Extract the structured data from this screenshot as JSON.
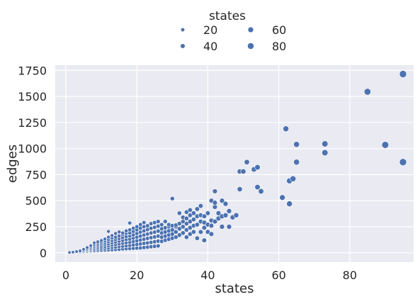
{
  "chart_data": {
    "type": "scatter",
    "title": "",
    "xlabel": "states",
    "ylabel": "edges",
    "xlim": [
      -3,
      98
    ],
    "ylim": [
      -90,
      1800
    ],
    "xticks": [
      0,
      20,
      40,
      60,
      80
    ],
    "yticks": [
      0,
      250,
      500,
      750,
      1000,
      1250,
      1500,
      1750
    ],
    "grid": true,
    "legend": {
      "title": "states",
      "placement": "top-center",
      "size_encoding": "states",
      "entries": [
        {
          "label": "20",
          "value": 20
        },
        {
          "label": "40",
          "value": 40
        },
        {
          "label": "60",
          "value": 60
        },
        {
          "label": "80",
          "value": 80
        }
      ]
    },
    "colors": {
      "background": "#eaeaf2",
      "grid": "#ffffff",
      "marker": "#4c72b0",
      "marker_edge": "#ffffff"
    },
    "size_range": [
      2.2,
      5.0
    ],
    "points": [
      [
        1,
        2
      ],
      [
        1,
        3
      ],
      [
        2,
        4
      ],
      [
        2,
        6
      ],
      [
        3,
        5
      ],
      [
        3,
        9
      ],
      [
        3,
        12
      ],
      [
        4,
        8
      ],
      [
        4,
        14
      ],
      [
        4,
        19
      ],
      [
        5,
        10
      ],
      [
        5,
        18
      ],
      [
        5,
        26
      ],
      [
        5,
        33
      ],
      [
        6,
        14
      ],
      [
        6,
        22
      ],
      [
        6,
        30
      ],
      [
        6,
        40
      ],
      [
        6,
        50
      ],
      [
        7,
        16
      ],
      [
        7,
        26
      ],
      [
        7,
        36
      ],
      [
        7,
        46
      ],
      [
        7,
        58
      ],
      [
        7,
        68
      ],
      [
        8,
        18
      ],
      [
        8,
        30
      ],
      [
        8,
        42
      ],
      [
        8,
        55
      ],
      [
        8,
        68
      ],
      [
        8,
        80
      ],
      [
        8,
        95
      ],
      [
        9,
        20
      ],
      [
        9,
        34
      ],
      [
        9,
        48
      ],
      [
        9,
        62
      ],
      [
        9,
        76
      ],
      [
        9,
        90
      ],
      [
        9,
        105
      ],
      [
        10,
        22
      ],
      [
        10,
        38
      ],
      [
        10,
        54
      ],
      [
        10,
        70
      ],
      [
        10,
        86
      ],
      [
        10,
        102
      ],
      [
        10,
        118
      ],
      [
        11,
        24
      ],
      [
        11,
        42
      ],
      [
        11,
        60
      ],
      [
        11,
        78
      ],
      [
        11,
        96
      ],
      [
        11,
        114
      ],
      [
        11,
        132
      ],
      [
        12,
        26
      ],
      [
        12,
        46
      ],
      [
        12,
        66
      ],
      [
        12,
        86
      ],
      [
        12,
        106
      ],
      [
        12,
        126
      ],
      [
        12,
        150
      ],
      [
        12,
        205
      ],
      [
        13,
        28
      ],
      [
        13,
        50
      ],
      [
        13,
        72
      ],
      [
        13,
        94
      ],
      [
        13,
        116
      ],
      [
        13,
        140
      ],
      [
        13,
        165
      ],
      [
        14,
        30
      ],
      [
        14,
        54
      ],
      [
        14,
        78
      ],
      [
        14,
        102
      ],
      [
        14,
        126
      ],
      [
        14,
        150
      ],
      [
        14,
        185
      ],
      [
        15,
        32
      ],
      [
        15,
        58
      ],
      [
        15,
        84
      ],
      [
        15,
        110
      ],
      [
        15,
        136
      ],
      [
        15,
        162
      ],
      [
        15,
        200
      ],
      [
        16,
        36
      ],
      [
        16,
        62
      ],
      [
        16,
        90
      ],
      [
        16,
        118
      ],
      [
        16,
        146
      ],
      [
        16,
        174
      ],
      [
        16,
        190
      ],
      [
        17,
        38
      ],
      [
        17,
        66
      ],
      [
        17,
        96
      ],
      [
        17,
        126
      ],
      [
        17,
        156
      ],
      [
        17,
        186
      ],
      [
        17,
        210
      ],
      [
        18,
        40
      ],
      [
        18,
        70
      ],
      [
        18,
        100
      ],
      [
        18,
        130
      ],
      [
        18,
        160
      ],
      [
        18,
        190
      ],
      [
        18,
        220
      ],
      [
        18,
        285
      ],
      [
        19,
        42
      ],
      [
        19,
        75
      ],
      [
        19,
        108
      ],
      [
        19,
        140
      ],
      [
        19,
        172
      ],
      [
        19,
        205
      ],
      [
        19,
        235
      ],
      [
        20,
        44
      ],
      [
        20,
        80
      ],
      [
        20,
        115
      ],
      [
        20,
        150
      ],
      [
        20,
        185
      ],
      [
        20,
        220
      ],
      [
        20,
        250
      ],
      [
        21,
        46
      ],
      [
        21,
        84
      ],
      [
        21,
        122
      ],
      [
        21,
        160
      ],
      [
        21,
        198
      ],
      [
        21,
        236
      ],
      [
        21,
        270
      ],
      [
        22,
        50
      ],
      [
        22,
        90
      ],
      [
        22,
        130
      ],
      [
        22,
        170
      ],
      [
        22,
        210
      ],
      [
        22,
        250
      ],
      [
        22,
        290
      ],
      [
        23,
        54
      ],
      [
        23,
        95
      ],
      [
        23,
        138
      ],
      [
        23,
        180
      ],
      [
        23,
        222
      ],
      [
        23,
        260
      ],
      [
        24,
        58
      ],
      [
        24,
        100
      ],
      [
        24,
        145
      ],
      [
        24,
        190
      ],
      [
        24,
        235
      ],
      [
        24,
        280
      ],
      [
        25,
        62
      ],
      [
        25,
        106
      ],
      [
        25,
        152
      ],
      [
        25,
        198
      ],
      [
        25,
        244
      ],
      [
        25,
        290
      ],
      [
        26,
        66
      ],
      [
        26,
        112
      ],
      [
        26,
        160
      ],
      [
        26,
        208
      ],
      [
        26,
        256
      ],
      [
        26,
        300
      ],
      [
        27,
        110
      ],
      [
        27,
        150
      ],
      [
        27,
        190
      ],
      [
        27,
        230
      ],
      [
        27,
        270
      ],
      [
        28,
        120
      ],
      [
        28,
        160
      ],
      [
        28,
        200
      ],
      [
        28,
        240
      ],
      [
        28,
        300
      ],
      [
        29,
        130
      ],
      [
        29,
        170
      ],
      [
        29,
        210
      ],
      [
        29,
        250
      ],
      [
        29,
        270
      ],
      [
        30,
        140
      ],
      [
        30,
        180
      ],
      [
        30,
        220
      ],
      [
        30,
        260
      ],
      [
        30,
        520
      ],
      [
        31,
        150
      ],
      [
        31,
        200
      ],
      [
        31,
        250
      ],
      [
        31,
        265
      ],
      [
        32,
        170
      ],
      [
        32,
        230
      ],
      [
        32,
        280
      ],
      [
        32,
        380
      ],
      [
        33,
        190
      ],
      [
        33,
        250
      ],
      [
        33,
        300
      ],
      [
        33,
        340
      ],
      [
        34,
        150
      ],
      [
        34,
        220
      ],
      [
        34,
        280
      ],
      [
        34,
        330
      ],
      [
        34,
        390
      ],
      [
        35,
        180
      ],
      [
        35,
        240
      ],
      [
        35,
        300
      ],
      [
        35,
        360
      ],
      [
        35,
        410
      ],
      [
        36,
        200
      ],
      [
        36,
        260
      ],
      [
        36,
        320
      ],
      [
        36,
        380
      ],
      [
        37,
        140
      ],
      [
        37,
        270
      ],
      [
        37,
        350
      ],
      [
        37,
        420
      ],
      [
        38,
        200
      ],
      [
        38,
        300
      ],
      [
        38,
        360
      ],
      [
        38,
        450
      ],
      [
        39,
        120
      ],
      [
        39,
        240
      ],
      [
        39,
        350
      ],
      [
        39,
        290
      ],
      [
        40,
        200
      ],
      [
        40,
        270
      ],
      [
        40,
        380
      ],
      [
        41,
        180
      ],
      [
        41,
        260
      ],
      [
        41,
        310
      ],
      [
        41,
        500
      ],
      [
        42,
        300
      ],
      [
        42,
        440
      ],
      [
        42,
        480
      ],
      [
        42,
        590
      ],
      [
        43,
        330
      ],
      [
        43,
        380
      ],
      [
        44,
        250
      ],
      [
        44,
        350
      ],
      [
        44,
        500
      ],
      [
        45,
        360
      ],
      [
        45,
        470
      ],
      [
        46,
        250
      ],
      [
        46,
        400
      ],
      [
        47,
        340
      ],
      [
        48,
        360
      ],
      [
        49,
        610
      ],
      [
        49,
        780
      ],
      [
        50,
        780
      ],
      [
        51,
        870
      ],
      [
        53,
        800
      ],
      [
        54,
        630
      ],
      [
        54,
        820
      ],
      [
        55,
        590
      ],
      [
        61,
        530
      ],
      [
        62,
        1190
      ],
      [
        63,
        470
      ],
      [
        63,
        690
      ],
      [
        64,
        710
      ],
      [
        65,
        870
      ],
      [
        65,
        1040
      ],
      [
        73,
        960
      ],
      [
        73,
        1045
      ],
      [
        85,
        1545
      ],
      [
        90,
        1035
      ],
      [
        95,
        870
      ],
      [
        95,
        1715
      ]
    ]
  }
}
